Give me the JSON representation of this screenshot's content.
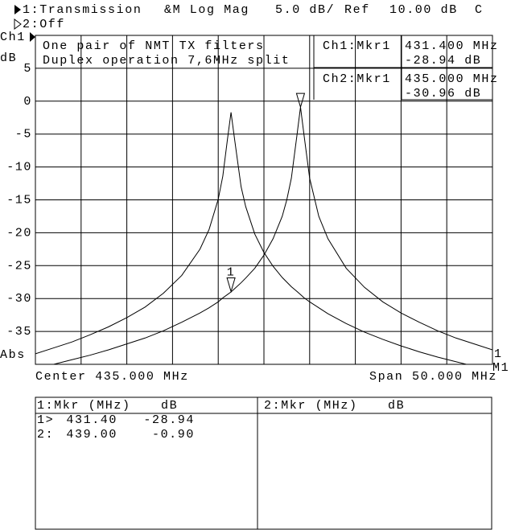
{
  "header": {
    "channel1": "1:Transmission",
    "format": "&M Log Mag",
    "scale": "5.0 dB/",
    "ref_label": "Ref",
    "ref_value": "10.00 dB",
    "flag": "C",
    "channel2": "2:Off"
  },
  "chart_data": {
    "type": "line",
    "channel_label": "Ch1",
    "y_unit": "dB",
    "y_mode": "Abs",
    "annotations": [
      "One pair of NMT TX filters",
      "Duplex operation 7,6MHz split"
    ],
    "readout": [
      {
        "channel": "Ch1:Mkr1",
        "freq": "431.400 MHz",
        "value": "-28.94 dB"
      },
      {
        "channel": "Ch2:Mkr1",
        "freq": "435.000 MHz",
        "value": "-30.96 dB"
      }
    ],
    "center": "Center 435.000 MHz",
    "span": "Span 50.000 MHz",
    "right_labels": [
      "1",
      "M1"
    ],
    "x": [
      410,
      412,
      414,
      416,
      418,
      420,
      422,
      424,
      426,
      428,
      429,
      430,
      430.5,
      431,
      431.4,
      431.8,
      432.5,
      433,
      434,
      435,
      436,
      437,
      437.5,
      438,
      438.6,
      439,
      439.4,
      440,
      441,
      442,
      444,
      446,
      448,
      450,
      452,
      454,
      456,
      458,
      460
    ],
    "xlim": [
      410,
      460
    ],
    "xticks": [
      410,
      415,
      420,
      425,
      430,
      435,
      440,
      445,
      450,
      455,
      460
    ],
    "ylim": [
      -40,
      10
    ],
    "yticks": [
      5,
      0,
      -5,
      -10,
      -15,
      -20,
      -25,
      -30,
      -35
    ],
    "grid": true,
    "series": [
      {
        "color": "#000000",
        "values": [
          -38.4,
          -37.5,
          -36.6,
          -35.5,
          -34.3,
          -32.9,
          -31.3,
          -29.2,
          -26.5,
          -22.5,
          -19.5,
          -14.9,
          -11.4,
          -5.9,
          -1.7,
          -5.9,
          -13.0,
          -16.0,
          -20.2,
          -23.0,
          -25.1,
          -26.8,
          -27.5,
          -28.2,
          -28.9,
          -29.4,
          -29.9,
          -30.5,
          -31.4,
          -32.3,
          -33.8,
          -35.1,
          -36.2,
          -37.2,
          -38.1,
          -38.9,
          -39.6,
          -40.3,
          -40.9
        ]
      },
      {
        "color": "#000000",
        "values": [
          -40.6,
          -40.0,
          -39.3,
          -38.6,
          -37.8,
          -36.9,
          -36.0,
          -34.9,
          -33.6,
          -32.2,
          -31.4,
          -30.5,
          -29.9,
          -29.4,
          -29.0,
          -28.5,
          -27.6,
          -26.9,
          -25.4,
          -23.4,
          -20.9,
          -17.5,
          -15.0,
          -11.7,
          -5.3,
          -0.9,
          -5.3,
          -11.7,
          -17.5,
          -20.9,
          -25.4,
          -28.3,
          -30.5,
          -32.2,
          -33.6,
          -34.9,
          -36.0,
          -36.9,
          -37.8
        ]
      }
    ],
    "markers": [
      {
        "label": "1",
        "x": 431.4,
        "value": -28.94
      },
      {
        "x": 439,
        "value": -0.9
      }
    ]
  },
  "marker_table": {
    "panels": [
      {
        "header": "1:Mkr (MHz)",
        "unit": "dB",
        "rows": [
          [
            "1>",
            "431.40",
            "-28.94"
          ],
          [
            "2:",
            "439.00",
            "-0.90"
          ]
        ]
      },
      {
        "header": "2:Mkr (MHz)",
        "unit": "dB",
        "rows": []
      }
    ]
  }
}
